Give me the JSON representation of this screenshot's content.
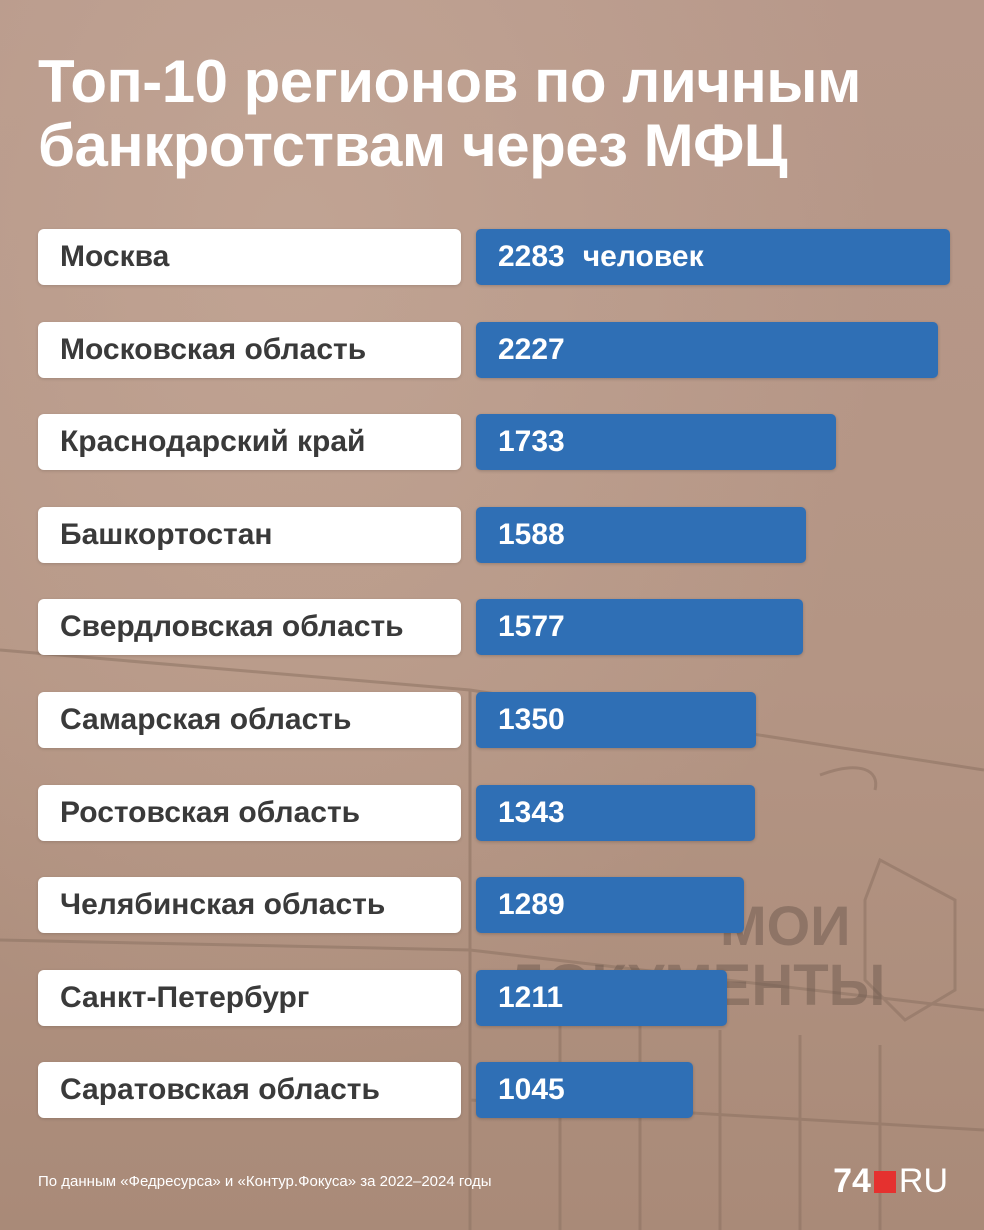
{
  "title_line1": "Топ-10 регионов по личным",
  "title_line2": "банкротствам через МФЦ",
  "bar_color": "#2f6fb5",
  "chart_data": {
    "type": "bar",
    "orientation": "horizontal",
    "unit_label": "человек",
    "categories": [
      "Москва",
      "Московская область",
      "Краснодарский край",
      "Башкортостан",
      "Свердловская область",
      "Самарская область",
      "Ростовская область",
      "Челябинская область",
      "Санкт-Петербург",
      "Саратовская область"
    ],
    "values": [
      2283,
      2227,
      1733,
      1588,
      1577,
      1350,
      1343,
      1289,
      1211,
      1045
    ],
    "xlim": [
      0,
      2283
    ],
    "grid": false,
    "legend": "none"
  },
  "background": {
    "sign_line1": "МОИ",
    "sign_line2": "ДОКУМЕНТЫ"
  },
  "footer": {
    "source": "По данным «Федресурса» и «Контур.Фокуса» за 2022–2024 годы"
  },
  "logo": {
    "number": "74",
    "suffix": "RU",
    "accent": "#e5312f"
  }
}
